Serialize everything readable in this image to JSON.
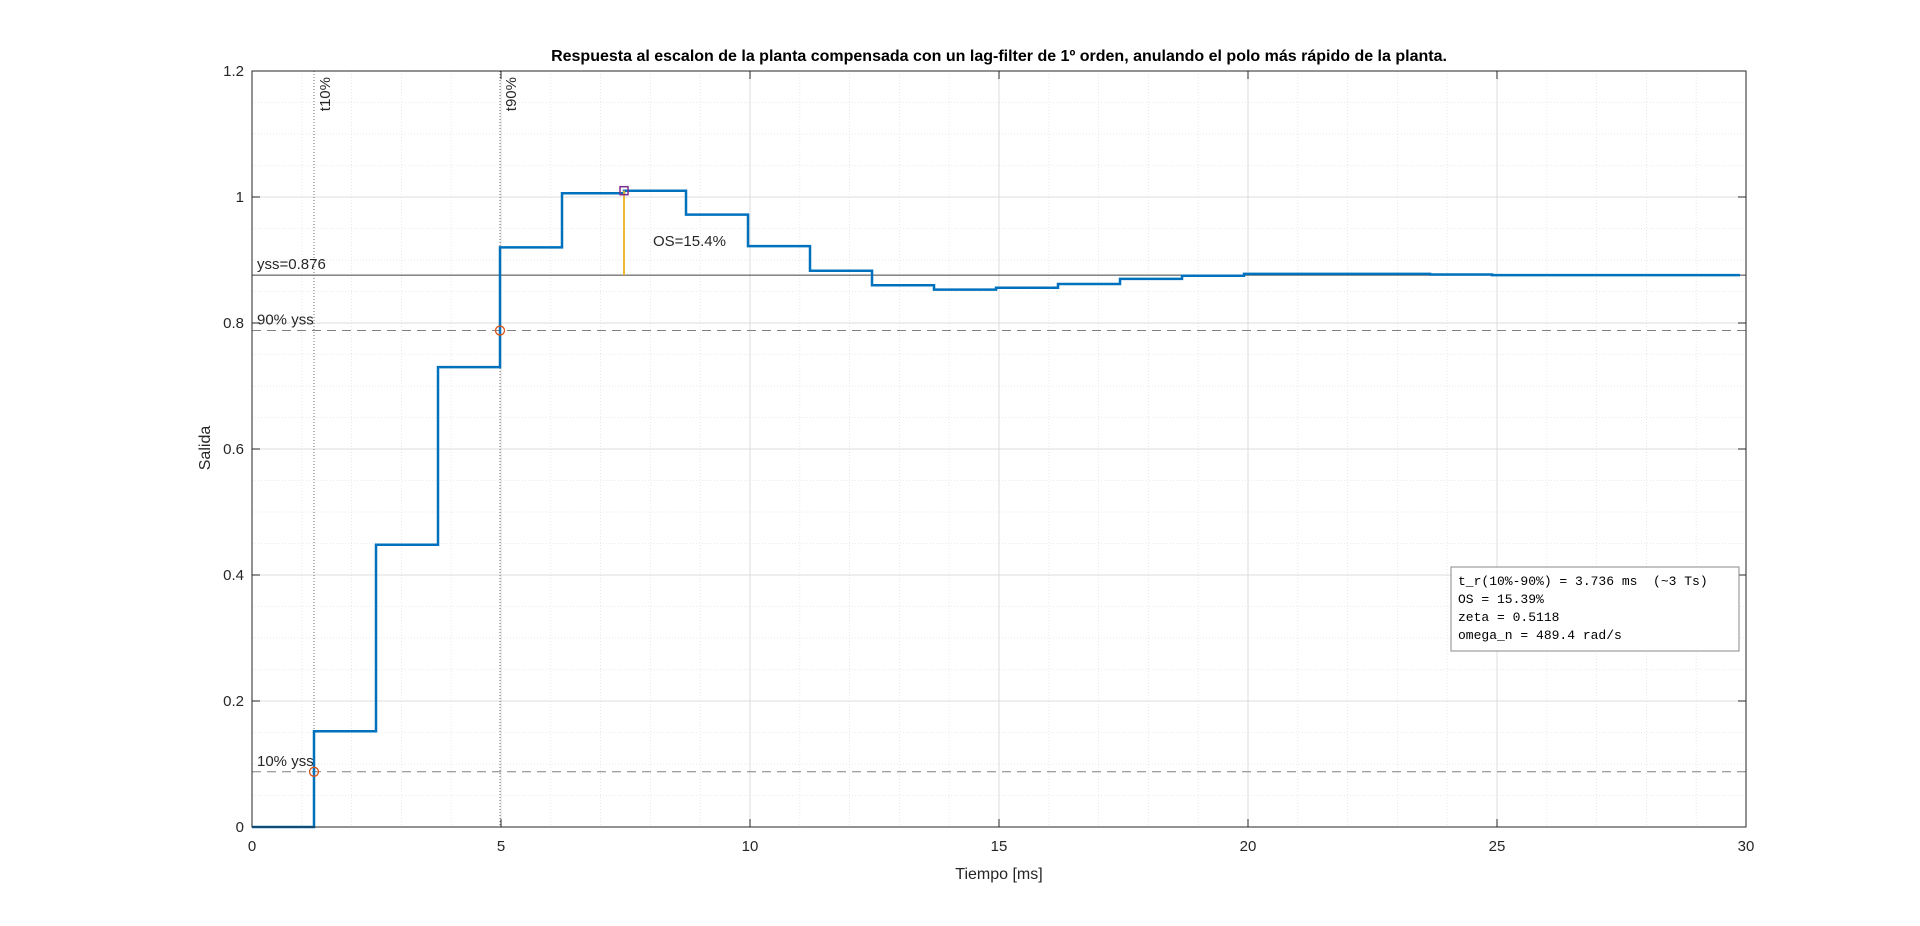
{
  "chart_data": {
    "type": "line",
    "title": "Respuesta al escalon de la planta compensada con un lag-filter de 1º orden, anulando el polo más rápido de la planta.",
    "xlabel": "Tiempo [ms]",
    "ylabel": "Salida",
    "xlim": [
      0,
      30
    ],
    "ylim": [
      0,
      1.2
    ],
    "xticks": [
      0,
      5,
      10,
      15,
      20,
      25,
      30
    ],
    "xtick_labels": [
      "0",
      "5",
      "10",
      "15",
      "20",
      "25",
      "30"
    ],
    "yticks": [
      0,
      0.2,
      0.4,
      0.6,
      0.8,
      1,
      1.2
    ],
    "ytick_labels": [
      "0",
      "0.2",
      "0.4",
      "0.6",
      "0.8",
      "1",
      "1.2"
    ],
    "grid": true,
    "minor_grid": true,
    "series": [
      {
        "style": "stairs",
        "color": "#0072BD",
        "x": [
          0,
          1.245,
          2.49,
          3.735,
          4.98,
          6.225,
          7.47,
          8.715,
          9.96,
          11.205,
          12.45,
          13.695,
          14.94,
          16.185,
          17.43,
          18.675,
          19.92,
          21.165,
          22.41,
          23.655,
          24.9,
          26.145,
          27.39,
          28.635
        ],
        "y": [
          0,
          0.152,
          0.448,
          0.73,
          0.92,
          1.006,
          1.01,
          0.972,
          0.922,
          0.883,
          0.86,
          0.853,
          0.856,
          0.862,
          0.87,
          0.875,
          0.878,
          0.878,
          0.878,
          0.877,
          0.876,
          0.876,
          0.876,
          0.876
        ]
      }
    ],
    "reference_lines": [
      {
        "label": "yss=0.876",
        "y": 0.876,
        "style": "solid",
        "color": "#404040"
      },
      {
        "label": "90% yss",
        "y": 0.788,
        "style": "dashed",
        "color": "#808080"
      },
      {
        "label": "10% yss",
        "y": 0.0876,
        "style": "dashed",
        "color": "#808080"
      }
    ],
    "vertical_lines": [
      {
        "label": "t10%",
        "x": 1.245
      },
      {
        "label": "t90%",
        "x": 4.98
      }
    ],
    "markers": [
      {
        "shape": "circle",
        "x": 1.245,
        "y": 0.0876,
        "color": "#D95319"
      },
      {
        "shape": "circle",
        "x": 4.98,
        "y": 0.788,
        "color": "#D95319"
      },
      {
        "shape": "square",
        "x": 7.47,
        "y": 1.01,
        "color": "#7E2F8E"
      }
    ],
    "overshoot": {
      "label": "OS=15.4%",
      "x": 7.47,
      "y_from": 0.876,
      "y_to": 1.01,
      "color": "#EDB120"
    },
    "info_box": {
      "position": "right",
      "lines": [
        "t_r(10%-90%) = 3.736 ms  (~3 Ts)",
        "OS = 15.39%",
        "zeta = 0.5118",
        "omega_n = 489.4 rad/s"
      ]
    }
  }
}
